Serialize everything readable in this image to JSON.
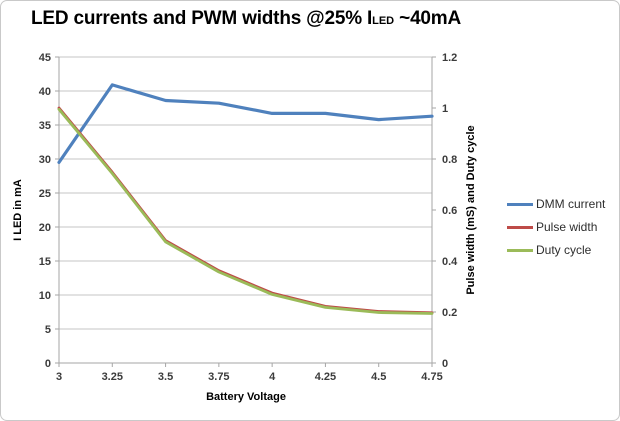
{
  "window": {
    "background": "#ffffff",
    "border_color": "#c9c9c9"
  },
  "chart_data": {
    "type": "line",
    "title": "LED currents and PWM widths @25% ILED ~40mA",
    "title_parts": {
      "pre": "LED currents and PWM widths @25% I",
      "sub": "LED",
      "post": " ~40mA"
    },
    "xlabel": "Battery Voltage",
    "ylabel_left": "I LED in mA",
    "ylabel_right": "Pulse width (mS) and Duty cycle",
    "x": [
      3,
      3.25,
      3.5,
      3.75,
      4,
      4.25,
      4.5,
      4.75
    ],
    "xlim": [
      3,
      4.75
    ],
    "ylim_left": [
      0,
      45
    ],
    "ylim_right": [
      0,
      1.2
    ],
    "left_ticks": [
      0,
      5,
      10,
      15,
      20,
      25,
      30,
      35,
      40,
      45
    ],
    "right_ticks": [
      0,
      0.2,
      0.4,
      0.6,
      0.8,
      1,
      1.2
    ],
    "grid": "horizontal",
    "legend_position": "right",
    "series": [
      {
        "name": "DMM current",
        "axis": "left",
        "color": "#4F81BD",
        "values": [
          29.5,
          40.9,
          38.6,
          38.2,
          36.7,
          36.7,
          35.8,
          36.3
        ]
      },
      {
        "name": "Pulse width",
        "axis": "right",
        "color": "#BE4B48",
        "values": [
          1.0,
          0.748,
          0.48,
          0.362,
          0.274,
          0.222,
          0.202,
          0.197
        ]
      },
      {
        "name": "Duty cycle",
        "axis": "right",
        "color": "#9BBB59",
        "values": [
          0.995,
          0.743,
          0.475,
          0.357,
          0.269,
          0.218,
          0.198,
          0.194
        ]
      }
    ],
    "colors": {
      "gridline": "#c6c6c6",
      "axis": "#a6a6a6",
      "tick_text": "#3b3b3b",
      "title_text": "#000000"
    }
  }
}
